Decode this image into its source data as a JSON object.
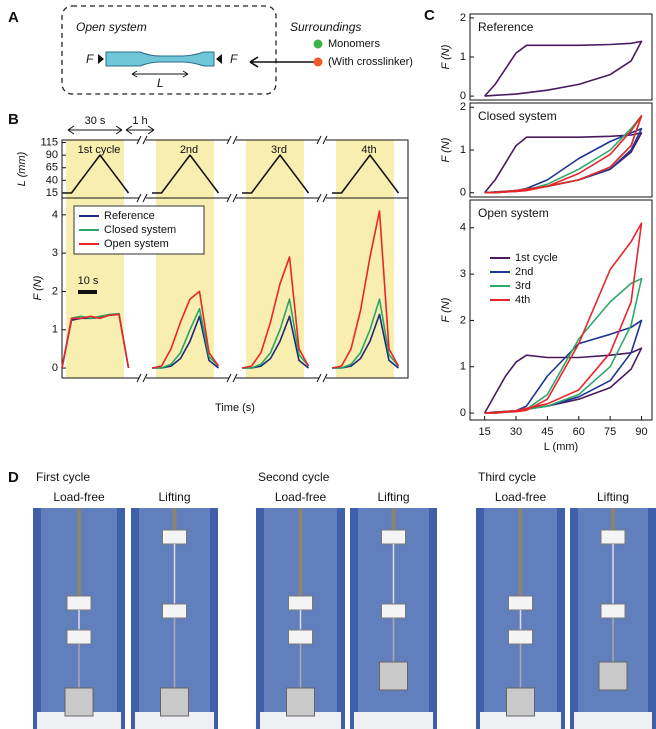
{
  "panel_labels": [
    "A",
    "B",
    "C",
    "D"
  ],
  "panel_a": {
    "system": "Open system",
    "force_left": "F",
    "force_right": "F",
    "length": "L",
    "surroundings": "Surroundings",
    "monomers": "Monomers",
    "crosslinker": "(With crosslinker)"
  },
  "panel_d": {
    "cycles": [
      "First cycle",
      "Second cycle",
      "Third cycle"
    ],
    "photos": [
      "Load-free",
      "Lifting",
      "Load-free",
      "Lifting",
      "Load-free",
      "Lifting"
    ]
  },
  "chart_data": [
    {
      "type": "line",
      "y_label": "L (mm)",
      "categories": [
        null,
        null,
        null,
        null,
        null,
        null,
        null,
        null,
        null,
        null,
        null,
        null,
        null,
        null,
        null,
        null,
        null,
        null,
        null,
        null,
        null,
        null,
        null,
        null,
        null,
        null,
        null,
        null,
        null,
        null,
        null,
        null,
        null,
        null,
        null
      ],
      "series": [
        {
          "color": "#111111",
          "values": [
            15,
            15,
            40,
            65,
            90,
            65,
            40,
            15,
            null,
            15,
            15,
            40,
            65,
            90,
            65,
            40,
            15,
            null,
            15,
            15,
            40,
            65,
            90,
            65,
            40,
            15,
            null,
            15,
            15,
            40,
            65,
            90,
            65,
            40,
            15
          ]
        }
      ],
      "ylim": [
        5,
        120
      ],
      "yticks": [
        15,
        40,
        65,
        90,
        115
      ],
      "annotations": [
        "1st cycle",
        "2nd",
        "3rd",
        "4th",
        "30 s",
        "1 h"
      ]
    },
    {
      "type": "line",
      "x_label": "Time (s)",
      "y_label": "F (N)",
      "categories": [
        null,
        null,
        null,
        null,
        null,
        null,
        null,
        null,
        null,
        null,
        null,
        null,
        null,
        null,
        null,
        null,
        null,
        null,
        null,
        null,
        null,
        null,
        null,
        null,
        null,
        null,
        null,
        null,
        null,
        null,
        null,
        null,
        null,
        null,
        null
      ],
      "series": [
        {
          "name": "Reference",
          "color": "#1b2a7a",
          "values": [
            0,
            1.25,
            1.3,
            1.3,
            1.32,
            1.38,
            1.4,
            0,
            null,
            0,
            0,
            0.05,
            0.25,
            0.7,
            1.35,
            0.2,
            0,
            null,
            0,
            0,
            0.05,
            0.25,
            0.7,
            1.35,
            0.2,
            0,
            null,
            0,
            0,
            0.05,
            0.25,
            0.7,
            1.4,
            0.2,
            0
          ]
        },
        {
          "name": "Closed system",
          "color": "#2aa56a",
          "values": [
            0,
            1.3,
            1.35,
            1.3,
            1.35,
            1.4,
            1.42,
            0,
            null,
            0,
            0,
            0.1,
            0.4,
            1.0,
            1.55,
            0.3,
            0.05,
            null,
            0,
            0,
            0.1,
            0.4,
            1.0,
            1.8,
            0.35,
            0.05,
            null,
            0,
            0,
            0.1,
            0.4,
            1.0,
            1.8,
            0.35,
            0.05
          ]
        },
        {
          "name": "Open system",
          "color": "#e8262a",
          "values": [
            0,
            1.3,
            1.3,
            1.35,
            1.3,
            1.38,
            1.4,
            0,
            null,
            0,
            0.05,
            0.5,
            1.2,
            1.8,
            2.0,
            0.4,
            0.05,
            null,
            0,
            0.05,
            0.4,
            1.2,
            2.2,
            2.9,
            0.5,
            0.05,
            null,
            0,
            0.05,
            0.5,
            1.5,
            2.9,
            4.1,
            0.5,
            0.05
          ]
        }
      ],
      "ylim": [
        -0.26,
        4.44
      ],
      "yticks": [
        0,
        1,
        2,
        3,
        4
      ],
      "legend": "upper left",
      "legend_frame": true,
      "annotations": [
        "10 s"
      ]
    },
    {
      "type": "line",
      "title": "Reference",
      "y_label": "F (N)",
      "x": [
        15,
        20,
        25,
        30,
        35,
        45,
        60,
        75,
        85,
        90,
        85,
        75,
        60,
        45,
        30,
        20,
        15
      ],
      "series": [
        {
          "color": "#4a1a5e",
          "values": [
            0,
            0.3,
            0.7,
            1.1,
            1.3,
            1.3,
            1.3,
            1.32,
            1.35,
            1.4,
            0.9,
            0.55,
            0.3,
            0.15,
            0.05,
            0.02,
            0
          ]
        }
      ],
      "xlim": [
        8,
        95
      ],
      "ylim": [
        -0.1,
        2.1
      ],
      "yticks": [
        0,
        1,
        2
      ]
    },
    {
      "type": "line",
      "title": "Closed system",
      "y_label": "F (N)",
      "x": [
        15,
        20,
        25,
        30,
        35,
        45,
        60,
        75,
        85,
        90,
        85,
        75,
        60,
        45,
        30,
        20,
        15
      ],
      "series": [
        {
          "color": "#4a1a5e",
          "values": [
            0,
            0.3,
            0.7,
            1.1,
            1.3,
            1.3,
            1.3,
            1.32,
            1.35,
            1.4,
            0.95,
            0.55,
            0.3,
            0.15,
            0.05,
            0.02,
            0
          ]
        },
        {
          "color": "#1f3596",
          "values": [
            0,
            0,
            0.02,
            0.05,
            0.1,
            0.3,
            0.8,
            1.2,
            1.4,
            1.5,
            1.0,
            0.55,
            0.3,
            0.15,
            0.05,
            0.01,
            0
          ]
        },
        {
          "color": "#2eaa6a",
          "values": [
            0,
            0,
            0.02,
            0.03,
            0.06,
            0.2,
            0.55,
            1.0,
            1.5,
            1.8,
            1.1,
            0.6,
            0.3,
            0.15,
            0.05,
            0.01,
            0
          ]
        },
        {
          "color": "#e8262a",
          "values": [
            0,
            0,
            0.02,
            0.03,
            0.05,
            0.15,
            0.45,
            0.9,
            1.45,
            1.8,
            1.1,
            0.6,
            0.3,
            0.15,
            0.05,
            0.01,
            0
          ]
        }
      ],
      "xlim": [
        8,
        95
      ],
      "ylim": [
        -0.1,
        2.1
      ],
      "yticks": [
        0,
        1,
        2
      ]
    },
    {
      "type": "line",
      "title": "Open system",
      "x_label": "L (mm)",
      "y_label": "F (N)",
      "x": [
        15,
        20,
        25,
        30,
        35,
        45,
        60,
        75,
        85,
        90,
        85,
        75,
        60,
        45,
        30,
        20,
        15
      ],
      "series": [
        {
          "name": "1st cycle",
          "color": "#4a1a5e",
          "values": [
            0,
            0.4,
            0.8,
            1.1,
            1.25,
            1.2,
            1.2,
            1.25,
            1.3,
            1.4,
            0.95,
            0.55,
            0.3,
            0.15,
            0.05,
            0.02,
            0
          ]
        },
        {
          "name": "2nd",
          "color": "#1f3596",
          "values": [
            0,
            0,
            0.02,
            0.05,
            0.15,
            0.8,
            1.5,
            1.7,
            1.85,
            2.0,
            1.3,
            0.7,
            0.35,
            0.15,
            0.05,
            0.01,
            0
          ]
        },
        {
          "name": "3rd",
          "color": "#2eaa6a",
          "values": [
            0,
            0,
            0.02,
            0.03,
            0.08,
            0.4,
            1.6,
            2.4,
            2.8,
            2.9,
            1.9,
            1.0,
            0.4,
            0.15,
            0.05,
            0.01,
            0
          ]
        },
        {
          "name": "4th",
          "color": "#e8262a",
          "values": [
            0,
            0,
            0.02,
            0.03,
            0.06,
            0.3,
            1.5,
            3.1,
            3.7,
            4.1,
            2.4,
            1.3,
            0.5,
            0.2,
            0.05,
            0.01,
            0
          ]
        }
      ],
      "xlim": [
        8,
        95
      ],
      "ylim": [
        -0.15,
        4.6
      ],
      "xticks": [
        15,
        30,
        45,
        60,
        75,
        90
      ],
      "yticks": [
        0,
        1,
        2,
        3,
        4
      ],
      "legend": "center left"
    }
  ]
}
